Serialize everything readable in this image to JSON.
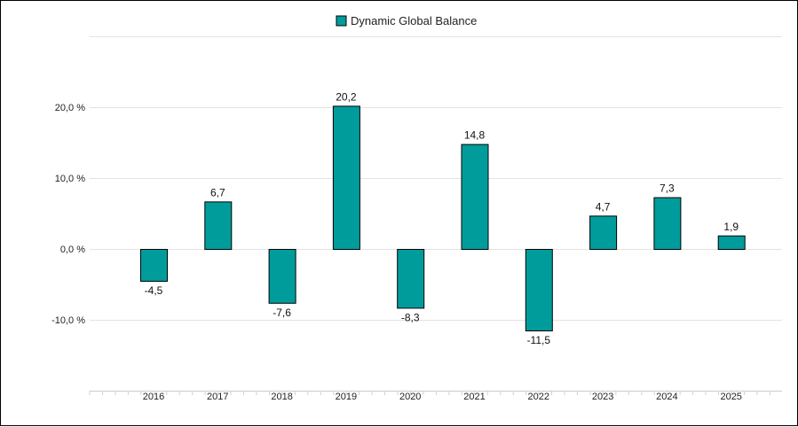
{
  "chart_data": {
    "type": "bar",
    "categories": [
      "2016",
      "2017",
      "2018",
      "2019",
      "2020",
      "2021",
      "2022",
      "2023",
      "2024",
      "2025"
    ],
    "series": [
      {
        "name": "Dynamic Global Balance",
        "values": [
          -4.5,
          6.7,
          -7.6,
          20.2,
          -8.3,
          14.8,
          -11.5,
          4.7,
          7.3,
          1.9
        ],
        "labels": [
          "-4,5",
          "6,7",
          "-7,6",
          "20,2",
          "-8,3",
          "14,8",
          "-11,5",
          "4,7",
          "7,3",
          "1,9"
        ],
        "color": "#009c9c"
      }
    ],
    "yticks": [
      -10,
      0,
      10,
      20
    ],
    "ytick_labels": [
      "-10,0 %",
      "0,0 %",
      "10,0 %",
      "20,0 %"
    ],
    "ylim": [
      -20,
      30
    ],
    "grid": true,
    "legend": "top-center",
    "title": "",
    "xlabel": "",
    "ylabel": ""
  }
}
